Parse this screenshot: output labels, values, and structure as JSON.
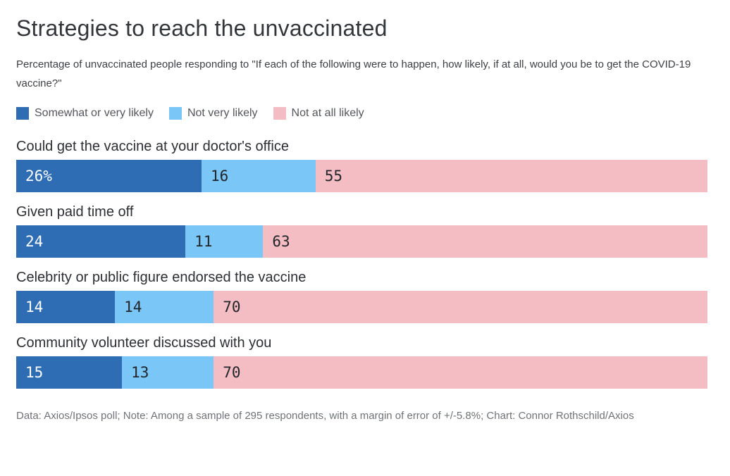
{
  "header": {
    "title": "Strategies to reach the unvaccinated",
    "subtitle": "Percentage of unvaccinated people responding to \"If each of the following were to happen, how likely, if at all, would you be to get the COVID-19 vaccine?\""
  },
  "legend": {
    "items": [
      {
        "label": "Somewhat or very likely",
        "color": "#2e6db4"
      },
      {
        "label": "Not very likely",
        "color": "#7ac7f7"
      },
      {
        "label": "Not at all likely",
        "color": "#f4bdc4"
      }
    ]
  },
  "chart_data": {
    "type": "bar",
    "orientation": "horizontal",
    "stacked": true,
    "normalized_to_full_width": true,
    "title": "Strategies to reach the unvaccinated",
    "legend_position": "top",
    "categories": [
      "Could get the vaccine at your doctor's office",
      "Given paid time off",
      "Celebrity or public figure endorsed the vaccine",
      "Community volunteer discussed with you"
    ],
    "series": [
      {
        "name": "Somewhat or very likely",
        "color": "#2e6db4",
        "values": [
          26,
          24,
          14,
          15
        ]
      },
      {
        "name": "Not very likely",
        "color": "#7ac7f7",
        "values": [
          16,
          11,
          14,
          13
        ]
      },
      {
        "name": "Not at all likely",
        "color": "#f4bdc4",
        "values": [
          55,
          63,
          70,
          70
        ]
      }
    ],
    "rows": [
      {
        "label": "Could get the vaccine at your doctor's office",
        "values": [
          26,
          16,
          55
        ],
        "value_labels": [
          "26%",
          "16",
          "55"
        ]
      },
      {
        "label": "Given paid time off",
        "values": [
          24,
          11,
          63
        ],
        "value_labels": [
          "24",
          "11",
          "63"
        ]
      },
      {
        "label": "Celebrity or public figure endorsed the vaccine",
        "values": [
          14,
          14,
          70
        ],
        "value_labels": [
          "14",
          "14",
          "70"
        ]
      },
      {
        "label": "Community volunteer discussed with you",
        "values": [
          15,
          13,
          70
        ],
        "value_labels": [
          "15",
          "13",
          "70"
        ]
      }
    ]
  },
  "footer": {
    "note": "Data: Axios/Ipsos poll; Note: Among a sample of 295 respondents, with a margin of error of +/-5.8%; Chart: Connor Rothschild/Axios"
  }
}
